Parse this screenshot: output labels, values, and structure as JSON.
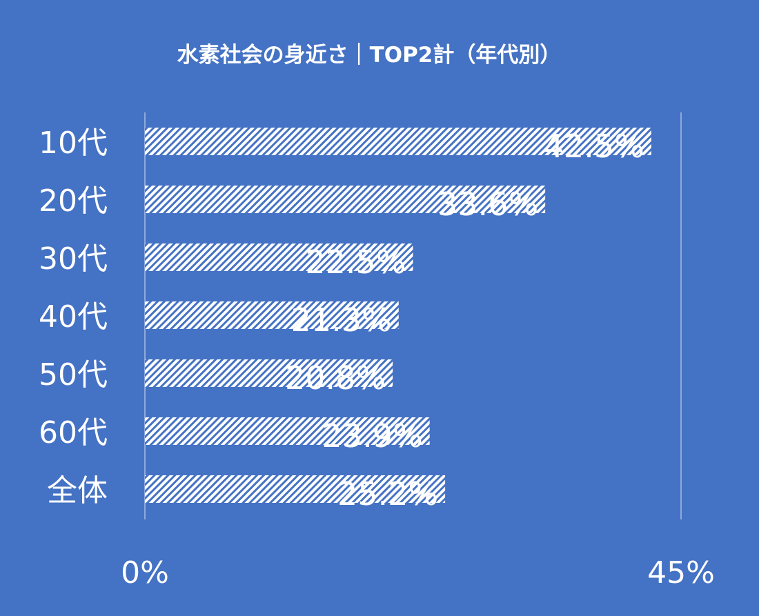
{
  "chart_data": {
    "type": "bar",
    "orientation": "horizontal",
    "title": "水素社会の身近さ｜TOP2計（年代別）",
    "categories": [
      "10代",
      "20代",
      "30代",
      "40代",
      "50代",
      "60代",
      "全体"
    ],
    "values": [
      42.5,
      33.6,
      22.5,
      21.3,
      20.8,
      23.9,
      25.2
    ],
    "data_labels": [
      "42.5%",
      "33.6%",
      "22.5%",
      "21.3%",
      "20.8%",
      "23.9%",
      "25.2%"
    ],
    "xlim": [
      0,
      45
    ],
    "x_tick_labels": [
      "0%",
      "45%"
    ],
    "xlabel": "",
    "ylabel": "",
    "grid": true,
    "legend": "none",
    "colors": {
      "background": "#4472c4",
      "bar_pattern_light": "#ffffff",
      "bar_pattern_dark": "#4472c4",
      "gridline": "#8fa9dc",
      "text": "#ffffff"
    }
  }
}
